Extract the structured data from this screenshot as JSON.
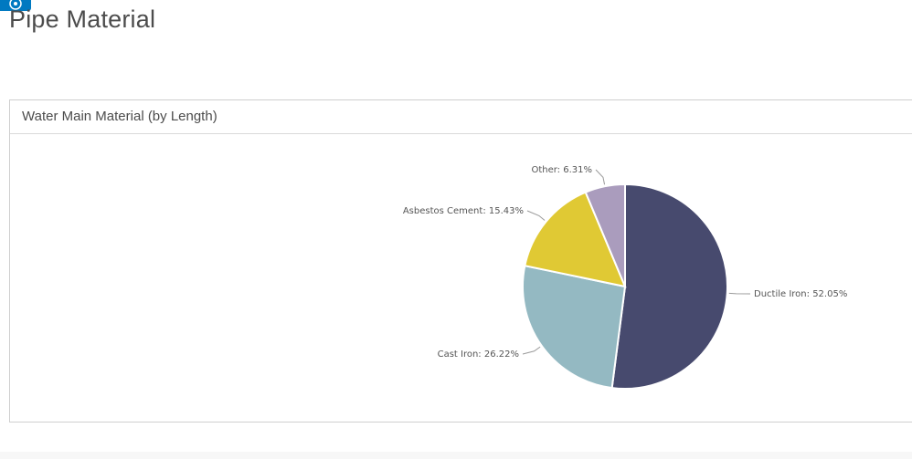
{
  "page": {
    "title": "Pipe Material",
    "app_icon": "app-launcher-icon",
    "accent_color": "#0079c1"
  },
  "card": {
    "title": "Water Main Material (by Length)"
  },
  "chart_data": {
    "type": "pie",
    "title": "Water Main Material (by Length)",
    "legend": "none (labels beside slices)",
    "slices": [
      {
        "name": "Ductile Iron",
        "value": 52.05,
        "label": "Ductile Iron: 52.05%",
        "color": "#474a6e"
      },
      {
        "name": "Cast Iron",
        "value": 26.22,
        "label": "Cast Iron: 26.22%",
        "color": "#94b9c2"
      },
      {
        "name": "Asbestos Cement",
        "value": 15.43,
        "label": "Asbestos Cement: 15.43%",
        "color": "#e0c934"
      },
      {
        "name": "Other",
        "value": 6.31,
        "label": "Other: 6.31%",
        "color": "#aa9cbd"
      }
    ]
  }
}
